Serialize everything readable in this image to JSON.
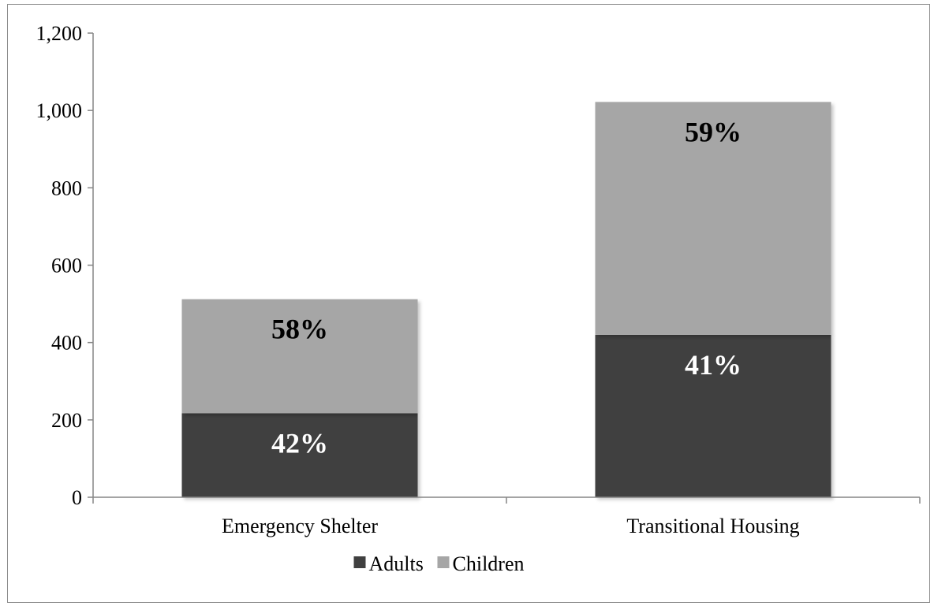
{
  "chart_data": {
    "type": "bar",
    "stacked": true,
    "categories": [
      "Emergency Shelter",
      "Transitional Housing"
    ],
    "series": [
      {
        "name": "Adults",
        "values": [
          217,
          420
        ],
        "labels": [
          "42%",
          "41%"
        ],
        "color": "#404040",
        "label_color": "#ffffff"
      },
      {
        "name": "Children",
        "values": [
          295,
          602
        ],
        "labels": [
          "58%",
          "59%"
        ],
        "color": "#a6a6a6",
        "label_color": "#000000"
      }
    ],
    "title": "",
    "xlabel": "",
    "ylabel": "",
    "ylim": [
      0,
      1200
    ],
    "yticks": [
      0,
      200,
      400,
      600,
      800,
      1000,
      1200
    ],
    "ytick_labels": [
      "0",
      "200",
      "400",
      "600",
      "800",
      "1,000",
      "1,200"
    ],
    "grid": false,
    "legend": "bottom"
  }
}
